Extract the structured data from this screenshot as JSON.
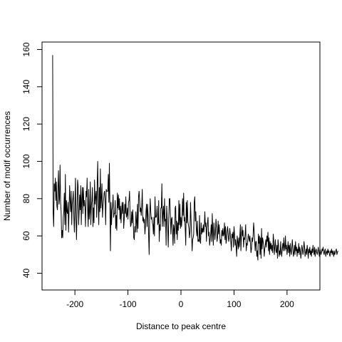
{
  "chart_data": {
    "type": "line",
    "title": "",
    "xlabel": "Distance to peak centre",
    "ylabel": "Number of motif occurrences",
    "xlim": [
      -262,
      262
    ],
    "ylim": [
      31,
      164
    ],
    "xticks": [
      -200,
      -100,
      0,
      100,
      200
    ],
    "xtick_labels": [
      "-200",
      "-100",
      "0",
      "100",
      "200"
    ],
    "yticks": [
      40,
      60,
      80,
      100,
      120,
      140,
      160
    ],
    "ytick_labels": [
      "40",
      "60",
      "80",
      "100",
      "120",
      "140",
      "160"
    ],
    "grid": false,
    "legend": "none",
    "line_color": "#000000",
    "series": [
      {
        "x_start": -242,
        "x_step": 1,
        "values": [
          157,
          72,
          65,
          88,
          84,
          91,
          79,
          89,
          76,
          74,
          86,
          95,
          77,
          80,
          98,
          78,
          73,
          59,
          63,
          59,
          70,
          73,
          83,
          66,
          93,
          63,
          79,
          73,
          72,
          78,
          62,
          74,
          87,
          79,
          73,
          84,
          66,
          77,
          80,
          84,
          70,
          62,
          76,
          91,
          69,
          58,
          73,
          90,
          87,
          66,
          73,
          82,
          74,
          87,
          66,
          80,
          86,
          72,
          86,
          76,
          79,
          75,
          65,
          84,
          81,
          91,
          74,
          65,
          85,
          69,
          73,
          89,
          66,
          76,
          79,
          86,
          65,
          75,
          67,
          90,
          77,
          81,
          84,
          70,
          88,
          100,
          77,
          66,
          86,
          73,
          96,
          75,
          80,
          88,
          70,
          76,
          79,
          83,
          84,
          79,
          66,
          85,
          84,
          84,
          84,
          93,
          78,
          99,
          75,
          52,
          78,
          66,
          74,
          76,
          82,
          70,
          72,
          72,
          79,
          64,
          71,
          63,
          83,
          75,
          82,
          74,
          80,
          69,
          76,
          67,
          73,
          78,
          72,
          78,
          64,
          69,
          77,
          72,
          81,
          70,
          71,
          75,
          69,
          78,
          79,
          84,
          72,
          65,
          66,
          73,
          67,
          74,
          68,
          59,
          58,
          65,
          62,
          73,
          68,
          62,
          77,
          64,
          81,
          84,
          79,
          73,
          75,
          71,
          76,
          85,
          68,
          70,
          67,
          69,
          61,
          65,
          73,
          77,
          65,
          77,
          71,
          60,
          50,
          71,
          80,
          73,
          69,
          70,
          67,
          66,
          61,
          70,
          60,
          81,
          70,
          70,
          71,
          76,
          66,
          67,
          79,
          57,
          66,
          63,
          75,
          75,
          88,
          65,
          72,
          76,
          65,
          80,
          68,
          69,
          55,
          76,
          70,
          64,
          54,
          70,
          80,
          80,
          71,
          61,
          69,
          70,
          63,
          55,
          66,
          64,
          56,
          75,
          76,
          61,
          68,
          58,
          67,
          63,
          79,
          66,
          77,
          64,
          70,
          65,
          69,
          80,
          71,
          83,
          68,
          70,
          64,
          55,
          78,
          67,
          79,
          68,
          66,
          64,
          59,
          62,
          78,
          69,
          61,
          52,
          58,
          59,
          61,
          78,
          81,
          68,
          73,
          63,
          60,
          68,
          57,
          58,
          57,
          71,
          57,
          56,
          67,
          61,
          64,
          62,
          66,
          62,
          65,
          73,
          65,
          67,
          57,
          64,
          67,
          70,
          60,
          62,
          55,
          58,
          61,
          66,
          57,
          72,
          62,
          55,
          67,
          63,
          58,
          62,
          69,
          65,
          57,
          59,
          68,
          61,
          66,
          61,
          56,
          58,
          55,
          63,
          60,
          64,
          60,
          61,
          67,
          58,
          65,
          56,
          58,
          63,
          65,
          61,
          57,
          59,
          64,
          61,
          57,
          52,
          61,
          59,
          62,
          54,
          65,
          61,
          55,
          58,
          54,
          49,
          60,
          57,
          53,
          59,
          54,
          60,
          66,
          52,
          60,
          65,
          60,
          63,
          54,
          59,
          58,
          61,
          66,
          52,
          56,
          55,
          58,
          61,
          59,
          57,
          60,
          56,
          51,
          53,
          59,
          57,
          60,
          67,
          63,
          57,
          52,
          57,
          57,
          49,
          52,
          47,
          61,
          56,
          60,
          50,
          59,
          48,
          64,
          53,
          59,
          57,
          55,
          49,
          53,
          55,
          58,
          54,
          60,
          57,
          62,
          52,
          59,
          50,
          57,
          53,
          56,
          52,
          55,
          51,
          61,
          57,
          50,
          54,
          58,
          52,
          51,
          55,
          48,
          58,
          55,
          49,
          52,
          50,
          57,
          51,
          49,
          53,
          56,
          52,
          59,
          54,
          52,
          60,
          53,
          55,
          50,
          53,
          57,
          51,
          55,
          49,
          56,
          52,
          50,
          54,
          58,
          53,
          49,
          51,
          55,
          50,
          57,
          52,
          54,
          49,
          53,
          51,
          56,
          50,
          54,
          52,
          48,
          51,
          55,
          53,
          50,
          52,
          57,
          54,
          49,
          51,
          53,
          50,
          55,
          52,
          48,
          53,
          51,
          54,
          50,
          52,
          49,
          53,
          51,
          55,
          52,
          50,
          54,
          49,
          52,
          53,
          51,
          50,
          52,
          54,
          51,
          49,
          53,
          52,
          50,
          51,
          53,
          52,
          54,
          51,
          50,
          52,
          53,
          49,
          51,
          52,
          50,
          53,
          51,
          52,
          50,
          49,
          52,
          51,
          53,
          50,
          52,
          51,
          49,
          52,
          50,
          51,
          52,
          53,
          50,
          51,
          52
        ]
      }
    ]
  }
}
